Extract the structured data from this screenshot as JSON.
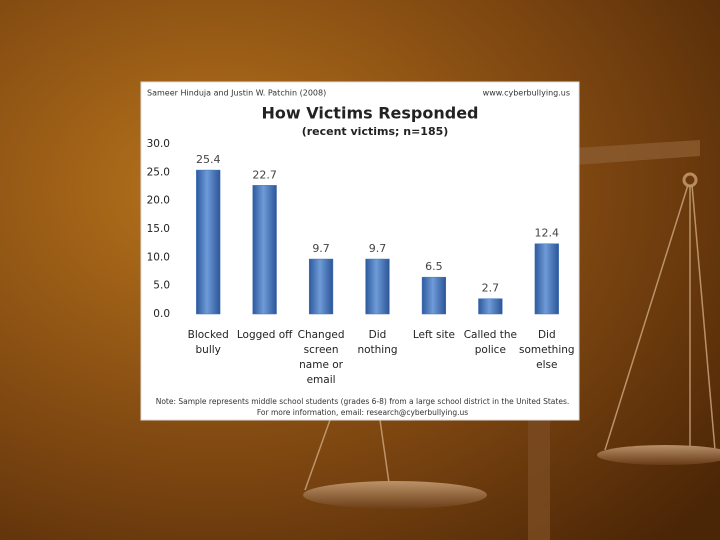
{
  "chart_data": {
    "type": "bar",
    "credit_left": "Sameer Hinduja and Justin W. Patchin (2008)",
    "credit_right": "www.cyberbullying.us",
    "title": "How Victims Responded",
    "subtitle": "(recent victims; n=185)",
    "categories": [
      "Blocked bully",
      "Logged off",
      "Changed screen name or email",
      "Did nothing",
      "Left site",
      "Called the police",
      "Did something else"
    ],
    "values": [
      25.4,
      22.7,
      9.7,
      9.7,
      6.5,
      2.7,
      12.4
    ],
    "color": "#3f6fb5",
    "ylim": [
      0,
      30
    ],
    "yticks": [
      {
        "value": 0,
        "label": "0.0"
      },
      {
        "value": 5,
        "label": "5.0"
      },
      {
        "value": 10,
        "label": "10.0"
      },
      {
        "value": 15,
        "label": "15.0"
      },
      {
        "value": 20,
        "label": "20.0"
      },
      {
        "value": 25,
        "label": "25.0"
      },
      {
        "value": 30,
        "label": "30.0"
      }
    ],
    "note": "Note: Sample represents middle school students (grades 6-8) from a large school district in the United States. For more information, email: research@cyberbullying.us"
  }
}
